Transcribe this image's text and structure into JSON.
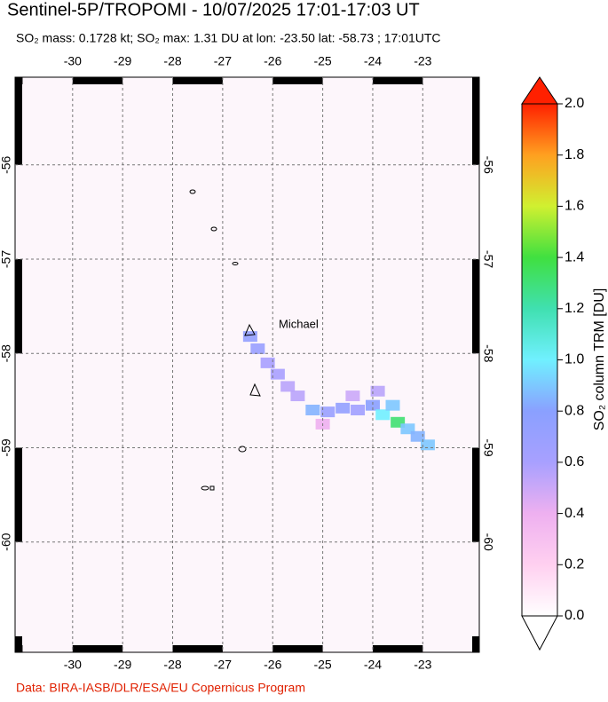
{
  "header": {
    "title": "Sentinel-5P/TROPOMI - 10/07/2025 17:01-17:03 UT",
    "subtitle": "SO₂ mass: 0.1728 kt; SO₂ max: 1.31 DU at lon: -23.50 lat: -58.73 ; 17:01UTC"
  },
  "map": {
    "lonlim": [
      -31.15,
      -21.87
    ],
    "latlim": [
      -55.07,
      -61.17
    ],
    "lonticks": [
      -30,
      -29,
      -28,
      -27,
      -26,
      -25,
      -24,
      -23
    ],
    "latticks": [
      -56,
      -57,
      -58,
      -59,
      -60
    ],
    "volcano": "Michael",
    "plume": {
      "lon": [
        -26.45,
        -26.3,
        -26.1,
        -25.9,
        -25.7,
        -25.5,
        -25.2,
        -24.9,
        -24.6,
        -24.3,
        -24.0,
        -23.8,
        -23.5,
        -23.3,
        -23.1,
        -22.9,
        -25.0,
        -24.4,
        -23.9,
        -23.6
      ],
      "lat": [
        -57.82,
        -57.95,
        -58.1,
        -58.22,
        -58.35,
        -58.45,
        -58.6,
        -58.62,
        -58.58,
        -58.6,
        -58.55,
        -58.65,
        -58.73,
        -58.8,
        -58.88,
        -58.97,
        -58.75,
        -58.45,
        -58.4,
        -58.55
      ],
      "values": [
        0.75,
        0.7,
        0.6,
        0.6,
        0.55,
        0.55,
        0.85,
        0.7,
        0.75,
        0.65,
        0.8,
        1.0,
        1.31,
        0.9,
        0.85,
        0.9,
        0.4,
        0.5,
        0.55,
        0.9
      ]
    }
  },
  "colorbar": {
    "label": "SO₂ column TRM [DU]",
    "lim": [
      0,
      2
    ],
    "ticks": [
      {
        "value": 0,
        "label": "0.0"
      },
      {
        "value": 0.2,
        "label": "0.2"
      },
      {
        "value": 0.4,
        "label": "0.4"
      },
      {
        "value": 0.6,
        "label": "0.6"
      },
      {
        "value": 0.8,
        "label": "0.8"
      },
      {
        "value": 1,
        "label": "1.0"
      },
      {
        "value": 1.2,
        "label": "1.2"
      },
      {
        "value": 1.4,
        "label": "1.4"
      },
      {
        "value": 1.6,
        "label": "1.6"
      },
      {
        "value": 1.8,
        "label": "1.8"
      },
      {
        "value": 2,
        "label": "2.0"
      }
    ]
  },
  "footer": {
    "credit": "Data: BIRA-IASB/DLR/ESA/EU Copernicus Program"
  }
}
